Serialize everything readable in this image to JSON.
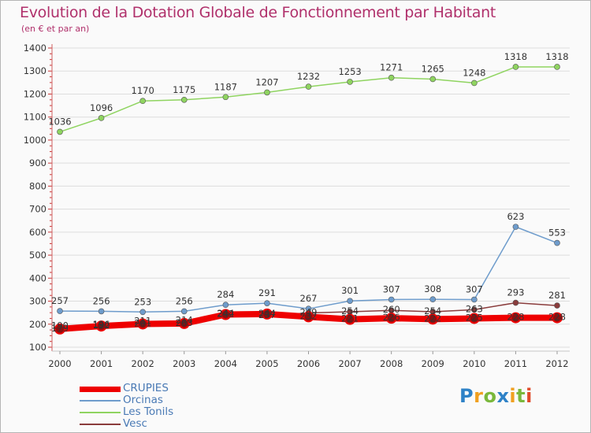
{
  "chart_data": {
    "type": "line",
    "title": "Evolution de la Dotation Globale de Fonctionnement par Habitant",
    "subtitle": "(en € et par an)",
    "xlabel": "",
    "ylabel": "",
    "ylim": [
      100,
      1400
    ],
    "yticks": [
      100,
      200,
      300,
      400,
      500,
      600,
      700,
      800,
      900,
      1000,
      1100,
      1200,
      1300,
      1400
    ],
    "grid": true,
    "legend_position": "bottom-left",
    "x": [
      "2000",
      "2001",
      "2002",
      "2003",
      "2004",
      "2005",
      "2006",
      "2007",
      "2008",
      "2009",
      "2010",
      "2011",
      "2012"
    ],
    "series": [
      {
        "name": "CRUPIES",
        "color": "#ee0000",
        "values": [
          179,
          192,
          201,
          203,
          242,
          244,
          232,
          221,
          226,
          222,
          225,
          228,
          228
        ]
      },
      {
        "name": "Orcinas",
        "color": "#6e9ccc",
        "values": [
          257,
          256,
          253,
          256,
          284,
          291,
          267,
          301,
          307,
          308,
          307,
          623,
          553
        ]
      },
      {
        "name": "Les Tonils",
        "color": "#8fd460",
        "values": [
          1036,
          1096,
          1170,
          1175,
          1187,
          1207,
          1232,
          1253,
          1271,
          1265,
          1248,
          1318,
          1318
        ]
      },
      {
        "name": "Vesc",
        "color": "#8a3c3c",
        "values": [
          190,
          196,
          211,
          214,
          244,
          237,
          249,
          254,
          260,
          254,
          263,
          293,
          281
        ]
      }
    ]
  },
  "logo": {
    "p": "P",
    "r": "r",
    "o": "o",
    "x": "x",
    "i1": "i",
    "t": "t",
    "i2": "i"
  }
}
